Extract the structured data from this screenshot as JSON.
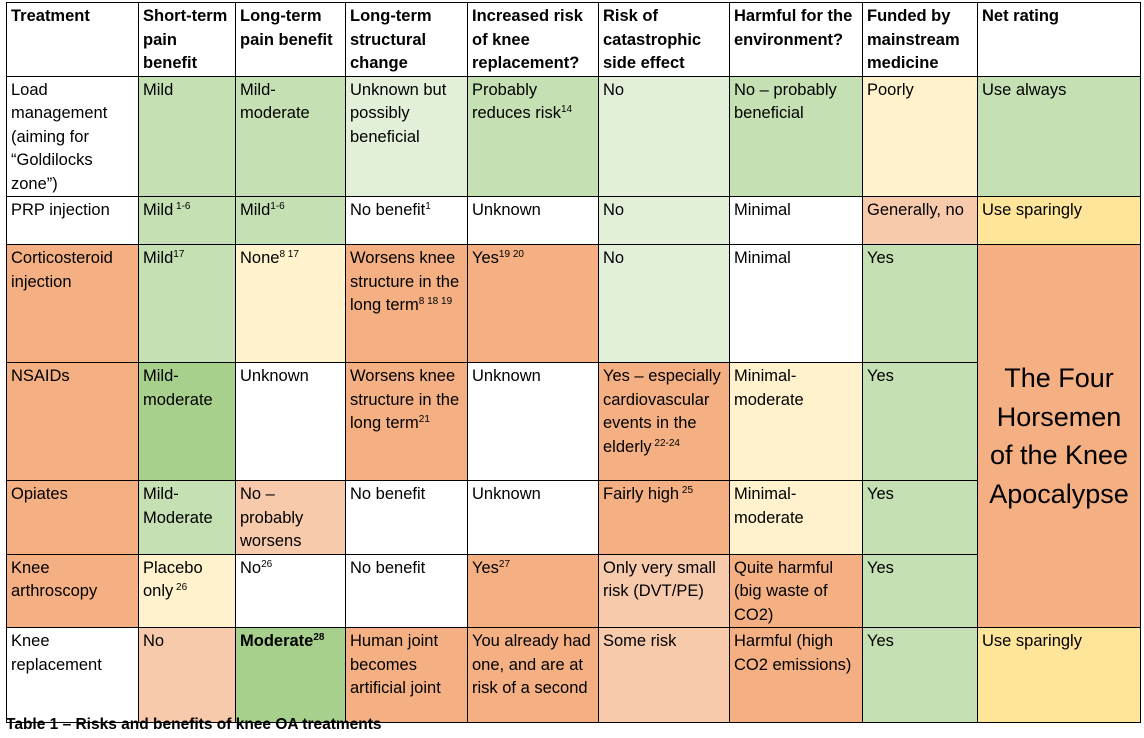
{
  "headers": [
    "Treatment",
    "Short-term pain benefit",
    "Long-term pain benefit",
    "Long-term structural change",
    "Increased risk of knee replacement?",
    "Risk of catastrophic side effect",
    "Harmful for the environment?",
    "Funded by mainstream medicine",
    "Net rating"
  ],
  "rows": {
    "load": {
      "treatment": "Load management (aiming for “Goldilocks zone”)",
      "short": "Mild",
      "long": "Mild-moderate",
      "struct": "Unknown but possibly beneficial",
      "risk": "Probably reduces risk",
      "risk_ref": "14",
      "cat": "No",
      "env": "No – probably beneficial",
      "funded": "Poorly",
      "net": "Use always"
    },
    "prp": {
      "treatment": "PRP injection",
      "short": "Mild",
      "short_ref": " 1-6",
      "long": "Mild",
      "long_ref": "1-6",
      "struct": "No benefit",
      "struct_ref": "1",
      "risk": "Unknown",
      "cat": "No",
      "env": "Minimal",
      "funded": "Generally, no",
      "net": "Use sparingly"
    },
    "cortico": {
      "treatment": "Corticosteroid injection",
      "short": "Mild",
      "short_ref": "17",
      "long": "None",
      "long_ref": "8 17",
      "struct": "Worsens knee structure in the long term",
      "struct_ref": "8 18 19",
      "risk": "Yes",
      "risk_ref": "19 20",
      "cat": "No",
      "env": "Minimal",
      "funded": "Yes"
    },
    "nsaids": {
      "treatment": "NSAIDs",
      "short": "Mild-moderate",
      "long": "Unknown",
      "struct": "Worsens knee structure in the long term",
      "struct_ref": "21",
      "risk": "Unknown",
      "cat": "Yes – especially cardiovascular events in the elderly",
      "cat_ref": " 22-24",
      "env": "Minimal-moderate",
      "funded": "Yes"
    },
    "opiates": {
      "treatment": "Opiates",
      "short": "Mild-Moderate",
      "long": "No – probably worsens",
      "struct": "No benefit",
      "risk": "Unknown",
      "cat": "Fairly high",
      "cat_ref": " 25",
      "env": "Minimal-moderate",
      "funded": "Yes"
    },
    "arthro": {
      "treatment": "Knee arthroscopy",
      "short": "Placebo only",
      "short_ref": " 26",
      "long": "No",
      "long_ref": "26",
      "struct": "No benefit",
      "risk": "Yes",
      "risk_ref": "27",
      "cat": "Only very small risk (DVT/PE)",
      "env": "Quite harmful (big waste of CO2)",
      "funded": "Yes"
    },
    "replace": {
      "treatment": "Knee replacement",
      "short": "No",
      "long": "Moderate",
      "long_ref": "28",
      "struct": "Human joint becomes artificial joint",
      "risk": "You already had one, and are at risk of a second",
      "cat": "Some risk",
      "env": "Harmful (high CO2 emissions)",
      "funded": "Yes",
      "net": "Use sparingly"
    }
  },
  "four_horsemen": "The Four Horsemen of the Knee Apocalypse",
  "caption": "Table 1 – Risks and benefits of knee OA treatments",
  "colors": {
    "light_green": "#e2efd9",
    "mid_green": "#c5e0b3",
    "dark_green": "#a8d08d",
    "light_yellow": "#fff2cc",
    "yellow": "#ffe599",
    "light_orange": "#f7caac",
    "orange": "#f4b083"
  }
}
